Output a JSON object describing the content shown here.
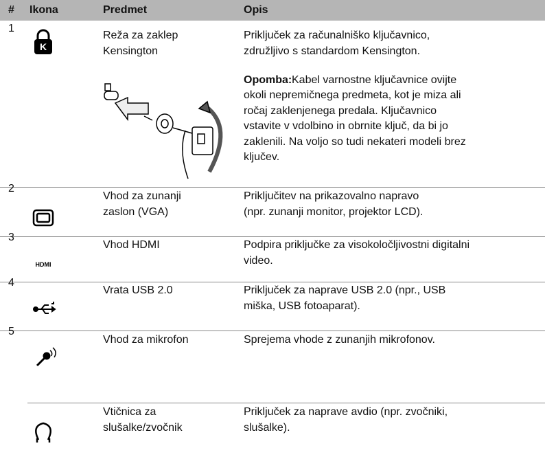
{
  "table": {
    "header": [
      "#",
      "Ikona",
      "Predmet",
      "Opis"
    ],
    "rows": [
      {
        "number": "1",
        "item": [
          "Reža za zaklep",
          "Kensington"
        ],
        "description": [
          "Priključek za računalniško ključavnico,",
          "združljivo s standardom Kensington."
        ],
        "note": {
          "label": "Opomba:",
          "lines": [
            "Kabel varnostne ključavnice ovijte",
            "okoli nepremičnega predmeta, kot je miza ali",
            "ročaj zaklenjenega predala. Ključavnico",
            "vstavite v vdolbino in obrnite ključ, da bi jo",
            "zaklenili. Na voljo so tudi nekateri modeli brez",
            "ključev."
          ]
        }
      },
      {
        "number": "2",
        "item": [
          "Vhod za zunanji",
          "zaslon (VGA)"
        ],
        "description": [
          "Priključitev na prikazovalno napravo",
          "(npr. zunanji monitor, projektor LCD)."
        ]
      },
      {
        "number": "3",
        "item": [
          "Vhod HDMI"
        ],
        "description": [
          "Podpira priključke za visokoločljivostni digitalni",
          "video."
        ]
      },
      {
        "number": "4",
        "item": [
          "Vrata USB 2.0"
        ],
        "description": [
          "Priključek za naprave USB 2.0 (npr., USB",
          "miška, USB fotoaparat)."
        ]
      },
      {
        "number": "5",
        "item": [
          "Vhod za mikrofon"
        ],
        "description": [
          "Sprejema vhode z zunanjih mikrofonov."
        ]
      },
      {
        "item": [
          "Vtičnica za",
          "slušalke/zvočnik"
        ],
        "description": [
          "Priključek za naprave avdio (npr. zvočniki,",
          "slušalke)."
        ]
      }
    ]
  }
}
